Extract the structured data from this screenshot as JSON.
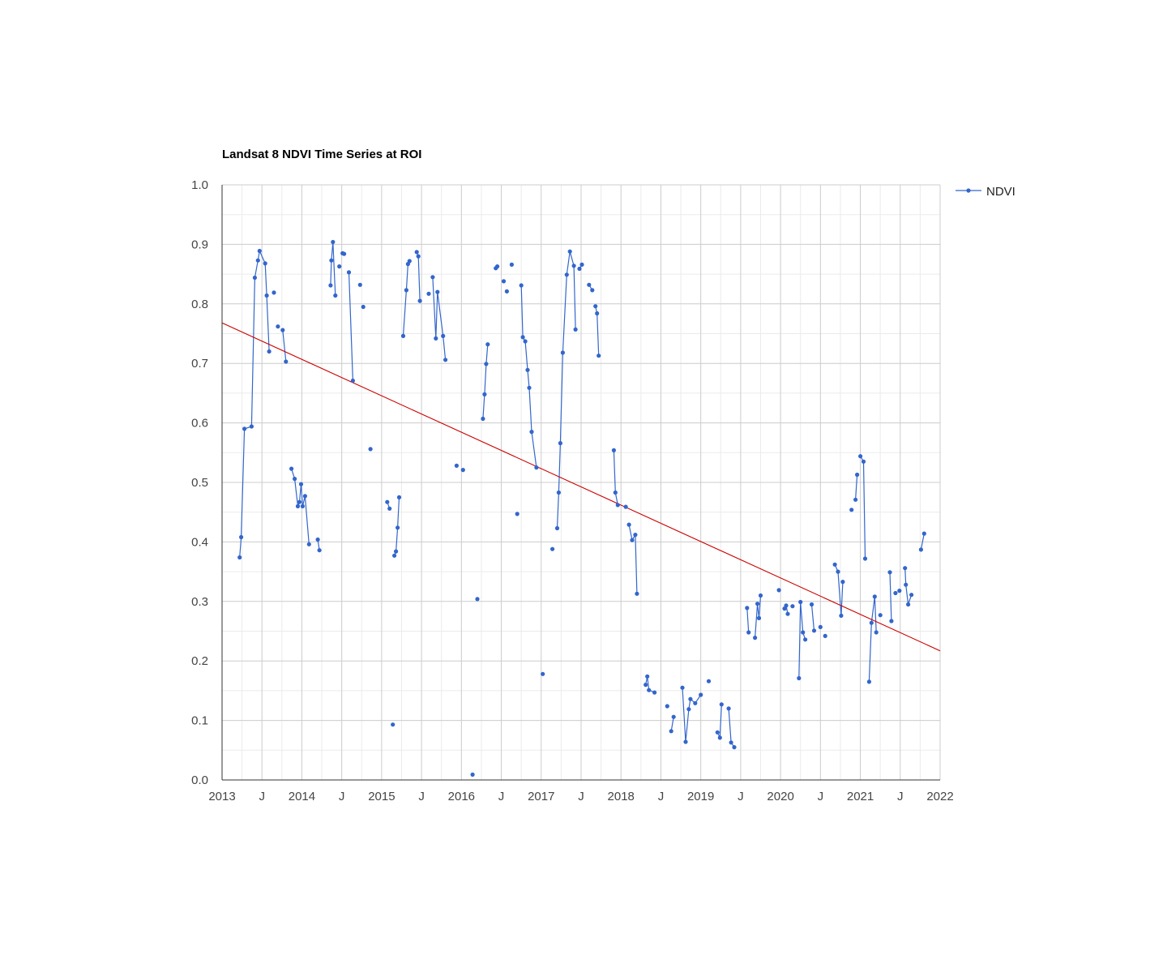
{
  "chart_data": {
    "type": "line",
    "title": "Landsat 8 NDVI Time Series at ROI",
    "xlabel": "",
    "ylabel": "",
    "xlim": [
      2013.0,
      2022.0
    ],
    "ylim": [
      0.0,
      1.0
    ],
    "x_ticks": [
      {
        "value": 2013.0,
        "label": "2013"
      },
      {
        "value": 2013.5,
        "label": "J"
      },
      {
        "value": 2014.0,
        "label": "2014"
      },
      {
        "value": 2014.5,
        "label": "J"
      },
      {
        "value": 2015.0,
        "label": "2015"
      },
      {
        "value": 2015.5,
        "label": "J"
      },
      {
        "value": 2016.0,
        "label": "2016"
      },
      {
        "value": 2016.5,
        "label": "J"
      },
      {
        "value": 2017.0,
        "label": "2017"
      },
      {
        "value": 2017.5,
        "label": "J"
      },
      {
        "value": 2018.0,
        "label": "2018"
      },
      {
        "value": 2018.5,
        "label": "J"
      },
      {
        "value": 2019.0,
        "label": "2019"
      },
      {
        "value": 2019.5,
        "label": "J"
      },
      {
        "value": 2020.0,
        "label": "2020"
      },
      {
        "value": 2020.5,
        "label": "J"
      },
      {
        "value": 2021.0,
        "label": "2021"
      },
      {
        "value": 2021.5,
        "label": "J"
      },
      {
        "value": 2022.0,
        "label": "2022"
      }
    ],
    "y_ticks": [
      {
        "value": 0.0,
        "label": "0.0"
      },
      {
        "value": 0.1,
        "label": "0.1"
      },
      {
        "value": 0.2,
        "label": "0.2"
      },
      {
        "value": 0.3,
        "label": "0.3"
      },
      {
        "value": 0.4,
        "label": "0.4"
      },
      {
        "value": 0.5,
        "label": "0.5"
      },
      {
        "value": 0.6,
        "label": "0.6"
      },
      {
        "value": 0.7,
        "label": "0.7"
      },
      {
        "value": 0.8,
        "label": "0.8"
      },
      {
        "value": 0.9,
        "label": "0.9"
      },
      {
        "value": 1.0,
        "label": "1.0"
      }
    ],
    "grid": true,
    "legend": {
      "position": "right",
      "entries": [
        "NDVI"
      ]
    },
    "colors": {
      "series": "#3366cc",
      "trendline": "#cc0000",
      "grid_major": "#cccccc",
      "grid_minor": "#ebebeb"
    },
    "trendline": {
      "x": [
        2013.0,
        2022.0
      ],
      "y": [
        0.768,
        0.217
      ]
    },
    "series": [
      {
        "name": "NDVI",
        "segments": [
          [
            [
              2013.22,
              0.374
            ],
            [
              2013.24,
              0.408
            ],
            [
              2013.28,
              0.59
            ],
            [
              2013.37,
              0.594
            ],
            [
              2013.41,
              0.844
            ],
            [
              2013.45,
              0.873
            ],
            [
              2013.47,
              0.889
            ],
            [
              2013.54,
              0.868
            ],
            [
              2013.56,
              0.814
            ],
            [
              2013.59,
              0.72
            ]
          ],
          [
            [
              2013.65,
              0.819
            ]
          ],
          [
            [
              2013.7,
              0.762
            ]
          ],
          [
            [
              2013.76,
              0.756
            ],
            [
              2013.8,
              0.703
            ]
          ],
          [
            [
              2013.87,
              0.523
            ],
            [
              2013.91,
              0.506
            ],
            [
              2013.95,
              0.46
            ],
            [
              2013.97,
              0.467
            ],
            [
              2013.99,
              0.497
            ],
            [
              2014.01,
              0.46
            ],
            [
              2014.04,
              0.477
            ],
            [
              2014.09,
              0.396
            ]
          ],
          [
            [
              2014.2,
              0.404
            ],
            [
              2014.22,
              0.386
            ]
          ],
          [
            [
              2014.36,
              0.831
            ],
            [
              2014.37,
              0.873
            ],
            [
              2014.39,
              0.904
            ],
            [
              2014.42,
              0.814
            ]
          ],
          [
            [
              2014.47,
              0.863
            ]
          ],
          [
            [
              2014.51,
              0.885
            ],
            [
              2014.53,
              0.884
            ]
          ],
          [
            [
              2014.59,
              0.853
            ],
            [
              2014.64,
              0.671
            ]
          ],
          [
            [
              2014.73,
              0.832
            ]
          ],
          [
            [
              2014.77,
              0.795
            ]
          ],
          [
            [
              2014.86,
              0.556
            ]
          ],
          [
            [
              2015.07,
              0.467
            ],
            [
              2015.1,
              0.456
            ]
          ],
          [
            [
              2015.14,
              0.093
            ]
          ],
          [
            [
              2015.16,
              0.377
            ],
            [
              2015.18,
              0.384
            ],
            [
              2015.2,
              0.424
            ],
            [
              2015.22,
              0.475
            ]
          ],
          [
            [
              2015.27,
              0.746
            ],
            [
              2015.31,
              0.823
            ],
            [
              2015.33,
              0.867
            ],
            [
              2015.35,
              0.872
            ]
          ],
          [
            [
              2015.44,
              0.887
            ],
            [
              2015.46,
              0.88
            ],
            [
              2015.48,
              0.805
            ]
          ],
          [
            [
              2015.59,
              0.817
            ]
          ],
          [
            [
              2015.64,
              0.845
            ],
            [
              2015.68,
              0.742
            ],
            [
              2015.7,
              0.82
            ],
            [
              2015.77,
              0.746
            ],
            [
              2015.8,
              0.706
            ]
          ],
          [
            [
              2015.94,
              0.528
            ]
          ],
          [
            [
              2016.02,
              0.521
            ]
          ],
          [
            [
              2016.14,
              0.009
            ]
          ],
          [
            [
              2016.2,
              0.304
            ]
          ],
          [
            [
              2016.27,
              0.607
            ],
            [
              2016.29,
              0.648
            ],
            [
              2016.31,
              0.699
            ],
            [
              2016.33,
              0.732
            ]
          ],
          [
            [
              2016.43,
              0.86
            ],
            [
              2016.45,
              0.863
            ]
          ],
          [
            [
              2016.53,
              0.838
            ]
          ],
          [
            [
              2016.57,
              0.821
            ]
          ],
          [
            [
              2016.63,
              0.866
            ]
          ],
          [
            [
              2016.7,
              0.447
            ]
          ],
          [
            [
              2016.75,
              0.831
            ],
            [
              2016.77,
              0.744
            ],
            [
              2016.8,
              0.737
            ],
            [
              2016.83,
              0.689
            ],
            [
              2016.85,
              0.659
            ],
            [
              2016.88,
              0.585
            ],
            [
              2016.94,
              0.525
            ]
          ],
          [
            [
              2017.02,
              0.178
            ]
          ],
          [
            [
              2017.14,
              0.388
            ]
          ],
          [
            [
              2017.2,
              0.423
            ],
            [
              2017.22,
              0.483
            ],
            [
              2017.24,
              0.566
            ],
            [
              2017.27,
              0.718
            ],
            [
              2017.32,
              0.849
            ],
            [
              2017.36,
              0.888
            ],
            [
              2017.41,
              0.864
            ],
            [
              2017.43,
              0.757
            ]
          ],
          [
            [
              2017.48,
              0.859
            ],
            [
              2017.51,
              0.866
            ]
          ],
          [
            [
              2017.6,
              0.832
            ],
            [
              2017.64,
              0.823
            ]
          ],
          [
            [
              2017.68,
              0.796
            ],
            [
              2017.7,
              0.784
            ],
            [
              2017.72,
              0.713
            ]
          ],
          [
            [
              2017.91,
              0.554
            ],
            [
              2017.93,
              0.483
            ],
            [
              2017.96,
              0.462
            ]
          ],
          [
            [
              2018.06,
              0.459
            ]
          ],
          [
            [
              2018.1,
              0.429
            ],
            [
              2018.14,
              0.403
            ],
            [
              2018.18,
              0.412
            ],
            [
              2018.2,
              0.313
            ]
          ],
          [
            [
              2018.31,
              0.16
            ],
            [
              2018.33,
              0.174
            ],
            [
              2018.35,
              0.151
            ],
            [
              2018.42,
              0.147
            ]
          ],
          [
            [
              2018.58,
              0.124
            ]
          ],
          [
            [
              2018.63,
              0.082
            ],
            [
              2018.66,
              0.106
            ]
          ],
          [
            [
              2018.77,
              0.155
            ],
            [
              2018.81,
              0.064
            ],
            [
              2018.85,
              0.119
            ],
            [
              2018.87,
              0.136
            ],
            [
              2018.93,
              0.129
            ],
            [
              2019.0,
              0.143
            ]
          ],
          [
            [
              2019.1,
              0.166
            ]
          ],
          [
            [
              2019.21,
              0.08
            ],
            [
              2019.24,
              0.071
            ],
            [
              2019.26,
              0.127
            ]
          ],
          [
            [
              2019.35,
              0.12
            ],
            [
              2019.38,
              0.063
            ],
            [
              2019.42,
              0.055
            ]
          ],
          [
            [
              2019.58,
              0.289
            ],
            [
              2019.6,
              0.248
            ]
          ],
          [
            [
              2019.68,
              0.239
            ],
            [
              2019.71,
              0.296
            ],
            [
              2019.73,
              0.272
            ],
            [
              2019.75,
              0.31
            ]
          ],
          [
            [
              2019.98,
              0.319
            ]
          ],
          [
            [
              2020.05,
              0.288
            ],
            [
              2020.07,
              0.293
            ],
            [
              2020.09,
              0.279
            ]
          ],
          [
            [
              2020.15,
              0.292
            ]
          ],
          [
            [
              2020.23,
              0.171
            ],
            [
              2020.25,
              0.299
            ],
            [
              2020.28,
              0.248
            ],
            [
              2020.31,
              0.236
            ]
          ],
          [
            [
              2020.39,
              0.295
            ],
            [
              2020.42,
              0.251
            ]
          ],
          [
            [
              2020.5,
              0.257
            ]
          ],
          [
            [
              2020.56,
              0.242
            ]
          ],
          [
            [
              2020.68,
              0.362
            ],
            [
              2020.72,
              0.35
            ],
            [
              2020.76,
              0.276
            ],
            [
              2020.78,
              0.333
            ]
          ],
          [
            [
              2020.89,
              0.454
            ]
          ],
          [
            [
              2020.94,
              0.471
            ],
            [
              2020.96,
              0.513
            ]
          ],
          [
            [
              2021.0,
              0.544
            ],
            [
              2021.04,
              0.535
            ],
            [
              2021.06,
              0.372
            ]
          ],
          [
            [
              2021.11,
              0.165
            ],
            [
              2021.14,
              0.264
            ],
            [
              2021.18,
              0.308
            ],
            [
              2021.2,
              0.248
            ]
          ],
          [
            [
              2021.25,
              0.277
            ]
          ],
          [
            [
              2021.37,
              0.349
            ],
            [
              2021.39,
              0.267
            ]
          ],
          [
            [
              2021.44,
              0.314
            ]
          ],
          [
            [
              2021.49,
              0.318
            ]
          ],
          [
            [
              2021.56,
              0.356
            ],
            [
              2021.57,
              0.328
            ],
            [
              2021.6,
              0.295
            ],
            [
              2021.64,
              0.311
            ]
          ],
          [
            [
              2021.76,
              0.387
            ],
            [
              2021.8,
              0.414
            ]
          ]
        ]
      }
    ]
  }
}
